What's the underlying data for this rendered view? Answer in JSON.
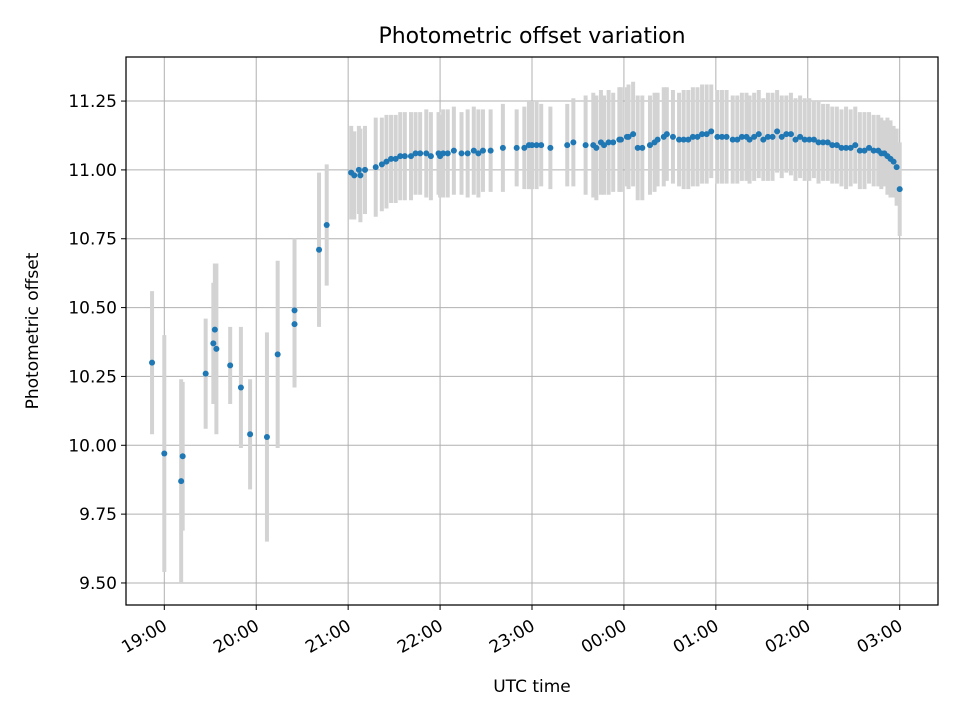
{
  "chart_data": {
    "type": "scatter",
    "title": "Photometric offset variation",
    "xlabel": "UTC time",
    "ylabel": "Photometric offset",
    "x_kind": "time",
    "xlim": [
      "18:35",
      "03:25"
    ],
    "ylim": [
      9.42,
      11.41
    ],
    "grid": true,
    "colors": {
      "point": "#1f77b4",
      "errorbar": "#d3d3d3",
      "grid": "#b0b0b0",
      "axes": "#000000"
    },
    "x_ticks": [
      "19:00",
      "20:00",
      "21:00",
      "22:00",
      "23:00",
      "00:00",
      "01:00",
      "02:00",
      "03:00"
    ],
    "x_ticks_pos": [
      0,
      60,
      120,
      180,
      240,
      300,
      360,
      420,
      480
    ],
    "y_ticks": [
      9.5,
      9.75,
      10.0,
      10.25,
      10.5,
      10.75,
      11.0,
      11.25
    ],
    "y_ticks_label": [
      "9.50",
      "9.75",
      "10.00",
      "10.25",
      "10.50",
      "10.75",
      "11.00",
      "11.25"
    ],
    "series": [
      {
        "x": [
          "18:52",
          "19:00",
          "19:11",
          "19:12",
          "19:27",
          "19:32",
          "19:33",
          "19:34",
          "19:43",
          "19:50",
          "19:56",
          "20:07",
          "20:14",
          "20:25",
          "20:25",
          "20:41",
          "20:46",
          "21:02",
          "21:04",
          "21:07",
          "21:08",
          "21:11",
          "21:18",
          "21:22",
          "21:25",
          "21:28",
          "21:31",
          "21:34",
          "21:37",
          "21:41",
          "21:44",
          "21:47",
          "21:51",
          "21:54",
          "21:59",
          "22:00",
          "22:02",
          "22:05",
          "22:09",
          "22:14",
          "22:18",
          "22:22",
          "22:25",
          "22:28",
          "22:33",
          "22:41",
          "22:50",
          "22:55",
          "22:58",
          "23:00",
          "23:03",
          "23:06",
          "23:12",
          "23:23",
          "23:27",
          "23:35",
          "23:40",
          "23:42",
          "23:45",
          "23:47",
          "23:50",
          "23:53",
          "23:57",
          "23:58",
          "00:02",
          "00:03",
          "00:06",
          "00:09",
          "00:12",
          "00:17",
          "00:20",
          "00:22",
          "00:26",
          "00:28",
          "00:32",
          "00:36",
          "00:39",
          "00:42",
          "00:45",
          "00:48",
          "00:51",
          "00:54",
          "00:57",
          "01:01",
          "01:04",
          "01:07",
          "01:11",
          "01:14",
          "01:17",
          "01:20",
          "01:22",
          "01:25",
          "01:28",
          "01:31",
          "01:34",
          "01:37",
          "01:40",
          "01:43",
          "01:46",
          "01:49",
          "01:52",
          "01:55",
          "01:58",
          "02:01",
          "02:04",
          "02:07",
          "02:10",
          "02:13",
          "02:16",
          "02:19",
          "02:22",
          "02:25",
          "02:28",
          "02:31",
          "02:34",
          "02:37",
          "02:40",
          "02:43",
          "02:46",
          "02:48",
          "02:50",
          "02:52",
          "02:54",
          "02:56",
          "02:58",
          "03:00"
        ],
        "y": [
          10.3,
          9.97,
          9.87,
          9.96,
          10.26,
          10.37,
          10.42,
          10.35,
          10.29,
          10.21,
          10.04,
          10.03,
          10.33,
          10.44,
          10.49,
          10.71,
          10.8,
          10.99,
          10.98,
          11.0,
          10.98,
          11.0,
          11.01,
          11.02,
          11.03,
          11.04,
          11.04,
          11.05,
          11.05,
          11.05,
          11.06,
          11.06,
          11.06,
          11.05,
          11.06,
          11.05,
          11.06,
          11.06,
          11.07,
          11.06,
          11.06,
          11.07,
          11.06,
          11.07,
          11.07,
          11.08,
          11.08,
          11.08,
          11.09,
          11.09,
          11.09,
          11.09,
          11.08,
          11.09,
          11.1,
          11.09,
          11.09,
          11.08,
          11.1,
          11.09,
          11.1,
          11.1,
          11.11,
          11.11,
          11.12,
          11.12,
          11.13,
          11.08,
          11.08,
          11.09,
          11.1,
          11.11,
          11.12,
          11.13,
          11.12,
          11.11,
          11.11,
          11.11,
          11.12,
          11.12,
          11.13,
          11.13,
          11.14,
          11.12,
          11.12,
          11.12,
          11.11,
          11.11,
          11.12,
          11.12,
          11.11,
          11.12,
          11.13,
          11.11,
          11.12,
          11.12,
          11.14,
          11.12,
          11.13,
          11.13,
          11.11,
          11.12,
          11.11,
          11.11,
          11.11,
          11.1,
          11.1,
          11.1,
          11.09,
          11.09,
          11.08,
          11.08,
          11.08,
          11.09,
          11.07,
          11.07,
          11.08,
          11.07,
          11.07,
          11.06,
          11.06,
          11.05,
          11.04,
          11.03,
          11.01,
          10.93
        ],
        "err": [
          0.26,
          0.43,
          0.37,
          0.27,
          0.2,
          0.22,
          0.24,
          0.31,
          0.14,
          0.22,
          0.2,
          0.38,
          0.34,
          0.23,
          0.26,
          0.28,
          0.22,
          0.17,
          0.16,
          0.16,
          0.17,
          0.16,
          0.18,
          0.17,
          0.17,
          0.16,
          0.16,
          0.16,
          0.16,
          0.16,
          0.15,
          0.15,
          0.16,
          0.16,
          0.15,
          0.15,
          0.16,
          0.16,
          0.16,
          0.15,
          0.16,
          0.16,
          0.16,
          0.15,
          0.15,
          0.16,
          0.14,
          0.15,
          0.16,
          0.16,
          0.16,
          0.15,
          0.15,
          0.15,
          0.16,
          0.18,
          0.19,
          0.19,
          0.19,
          0.18,
          0.19,
          0.18,
          0.19,
          0.19,
          0.18,
          0.19,
          0.19,
          0.19,
          0.19,
          0.18,
          0.18,
          0.17,
          0.18,
          0.17,
          0.17,
          0.17,
          0.18,
          0.18,
          0.18,
          0.18,
          0.18,
          0.18,
          0.17,
          0.17,
          0.17,
          0.17,
          0.16,
          0.16,
          0.16,
          0.16,
          0.16,
          0.16,
          0.16,
          0.15,
          0.16,
          0.16,
          0.15,
          0.15,
          0.14,
          0.15,
          0.15,
          0.15,
          0.15,
          0.15,
          0.14,
          0.15,
          0.14,
          0.14,
          0.14,
          0.14,
          0.14,
          0.15,
          0.14,
          0.14,
          0.14,
          0.14,
          0.13,
          0.13,
          0.13,
          0.13,
          0.12,
          0.14,
          0.14,
          0.13,
          0.14,
          0.17
        ]
      }
    ]
  }
}
